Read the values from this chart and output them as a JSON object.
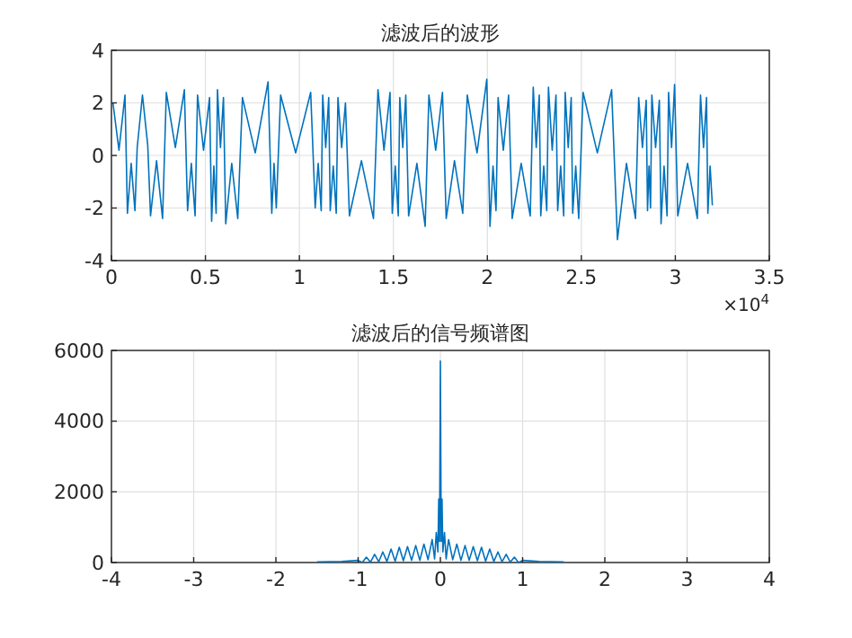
{
  "chart_data": [
    {
      "type": "line",
      "title": "滤波后的波形",
      "color": "#0072bd",
      "grid": true,
      "xlim": [
        0,
        3.5
      ],
      "ylim": [
        -4,
        4
      ],
      "xticks": [
        0,
        0.5,
        1,
        1.5,
        2,
        2.5,
        3,
        3.5
      ],
      "yticks": [
        -4,
        -2,
        0,
        2,
        4
      ],
      "annotations": [
        "×10$^{4}$"
      ],
      "x": [
        0.008,
        0.04,
        0.072,
        0.085,
        0.105,
        0.125,
        0.137,
        0.165,
        0.193,
        0.208,
        0.24,
        0.272,
        0.292,
        0.34,
        0.388,
        0.405,
        0.425,
        0.445,
        0.458,
        0.49,
        0.522,
        0.533,
        0.545,
        0.557,
        0.564,
        0.58,
        0.596,
        0.608,
        0.64,
        0.672,
        0.697,
        0.765,
        0.833,
        0.853,
        0.865,
        0.877,
        0.9,
        0.98,
        1.06,
        1.084,
        1.1,
        1.116,
        1.124,
        1.14,
        1.156,
        1.164,
        1.18,
        1.196,
        1.205,
        1.225,
        1.245,
        1.266,
        1.33,
        1.394,
        1.418,
        1.45,
        1.482,
        1.494,
        1.51,
        1.526,
        1.534,
        1.55,
        1.566,
        1.581,
        1.625,
        1.669,
        1.689,
        1.725,
        1.761,
        1.781,
        1.825,
        1.869,
        1.893,
        1.945,
        1.997,
        2.014,
        2.03,
        2.046,
        2.057,
        2.085,
        2.113,
        2.132,
        2.18,
        2.228,
        2.244,
        2.26,
        2.276,
        2.284,
        2.3,
        2.316,
        2.325,
        2.345,
        2.365,
        2.374,
        2.39,
        2.406,
        2.414,
        2.43,
        2.446,
        2.454,
        2.47,
        2.486,
        2.509,
        2.585,
        2.661,
        2.692,
        2.74,
        2.788,
        2.805,
        2.825,
        2.845,
        2.852,
        2.86,
        2.868,
        2.875,
        2.895,
        2.915,
        2.924,
        2.94,
        2.956,
        2.964,
        2.98,
        2.996,
        3.013,
        3.065,
        3.117,
        3.134,
        3.15,
        3.166,
        3.173,
        3.185,
        3.197
      ],
      "values": [
        2.0,
        0.2,
        2.3,
        -2.2,
        -0.3,
        -2.1,
        0.3,
        2.3,
        0.4,
        -2.3,
        -0.2,
        -2.4,
        2.4,
        0.3,
        2.5,
        -2.1,
        -0.3,
        -2.3,
        2.3,
        0.2,
        2.2,
        -2.5,
        -0.4,
        -2.2,
        2.5,
        0.3,
        2.2,
        -2.6,
        -0.3,
        -2.4,
        2.2,
        0.1,
        2.8,
        -2.2,
        -0.3,
        -2.0,
        2.3,
        0.1,
        2.4,
        -2.0,
        -0.3,
        -2.1,
        2.3,
        0.3,
        2.2,
        -2.1,
        -0.4,
        -2.2,
        2.2,
        0.3,
        2.0,
        -2.3,
        -0.2,
        -2.4,
        2.5,
        0.2,
        2.4,
        -2.2,
        -0.4,
        -2.3,
        2.2,
        0.3,
        2.3,
        -2.3,
        -0.3,
        -2.7,
        2.3,
        0.2,
        2.4,
        -2.4,
        -0.2,
        -2.2,
        2.3,
        0.1,
        2.9,
        -2.7,
        -0.4,
        -2.1,
        2.2,
        0.2,
        2.3,
        -2.4,
        -0.3,
        -2.3,
        2.6,
        0.3,
        2.3,
        -2.3,
        -0.4,
        -2.1,
        2.6,
        0.2,
        2.3,
        -2.1,
        -0.4,
        -2.3,
        2.4,
        0.3,
        2.2,
        -2.2,
        -0.4,
        -2.4,
        2.4,
        0.1,
        2.5,
        -3.2,
        -0.3,
        -2.4,
        2.2,
        0.3,
        2.1,
        -2.1,
        -0.4,
        -2.0,
        2.3,
        0.3,
        2.1,
        -2.6,
        -0.4,
        -2.3,
        2.4,
        0.3,
        2.7,
        -2.3,
        -0.3,
        -2.4,
        2.3,
        0.3,
        2.2,
        -2.2,
        -0.4,
        -1.9
      ]
    },
    {
      "type": "line",
      "title": "滤波后的信号频谱图",
      "color": "#0072bd",
      "grid": true,
      "xlim": [
        -4,
        4
      ],
      "ylim": [
        0,
        6000
      ],
      "xticks": [
        -4,
        -3,
        -2,
        -1,
        0,
        1,
        2,
        3,
        4
      ],
      "yticks": [
        0,
        2000,
        4000,
        6000
      ],
      "x": [
        -1.5,
        -1.2,
        -1,
        -0.95,
        -0.9,
        -0.85,
        -0.8,
        -0.75,
        -0.7,
        -0.65,
        -0.6,
        -0.55,
        -0.5,
        -0.45,
        -0.4,
        -0.35,
        -0.3,
        -0.25,
        -0.2,
        -0.15,
        -0.1,
        -0.07,
        -0.05,
        -0.03,
        -0.02,
        -0.01,
        0,
        0.01,
        0.02,
        0.03,
        0.05,
        0.07,
        0.1,
        0.15,
        0.2,
        0.25,
        0.3,
        0.35,
        0.4,
        0.45,
        0.5,
        0.55,
        0.6,
        0.65,
        0.7,
        0.75,
        0.8,
        0.85,
        0.9,
        0.95,
        1,
        1.2,
        1.5
      ],
      "values": [
        20,
        30,
        60,
        0,
        150,
        10,
        230,
        20,
        300,
        30,
        380,
        40,
        430,
        50,
        450,
        60,
        480,
        60,
        520,
        80,
        650,
        100,
        850,
        300,
        1800,
        600,
        5700,
        600,
        1800,
        300,
        850,
        100,
        650,
        80,
        520,
        60,
        480,
        60,
        450,
        50,
        430,
        40,
        380,
        30,
        300,
        20,
        230,
        10,
        150,
        0,
        60,
        30,
        20
      ]
    }
  ]
}
